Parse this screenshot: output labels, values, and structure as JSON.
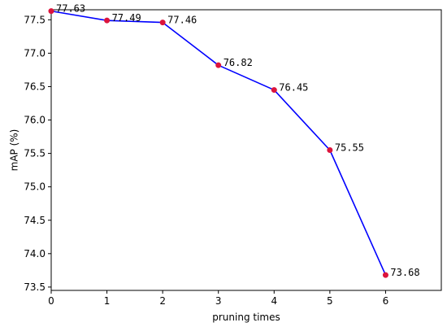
{
  "chart_data": {
    "type": "line",
    "title": "",
    "xlabel": "pruning times",
    "ylabel": "mAP (%)",
    "x": [
      0,
      1,
      2,
      3,
      4,
      5,
      6
    ],
    "series": [
      {
        "values": [
          77.63,
          77.49,
          77.46,
          76.82,
          76.45,
          75.55,
          73.68
        ],
        "data_labels": [
          "77.63",
          "77.49",
          "77.46",
          "76.82",
          "76.45",
          "75.55",
          "73.68"
        ]
      }
    ],
    "xticks": [
      0,
      1,
      2,
      3,
      4,
      5,
      6
    ],
    "xtick_labels": [
      "0",
      "1",
      "2",
      "3",
      "4",
      "5",
      "6"
    ],
    "yticks": [
      73.5,
      74.0,
      74.5,
      75.0,
      75.5,
      76.0,
      76.5,
      77.0,
      77.5
    ],
    "ytick_labels": [
      "73.5",
      "74.0",
      "74.5",
      "75.0",
      "75.5",
      "76.0",
      "76.5",
      "77.0",
      "77.5"
    ],
    "xlim": [
      0,
      7
    ],
    "ylim": [
      73.45,
      77.65
    ],
    "grid": false,
    "legend": false,
    "line_color": "#0000ff",
    "marker_color": "#dc143c"
  }
}
